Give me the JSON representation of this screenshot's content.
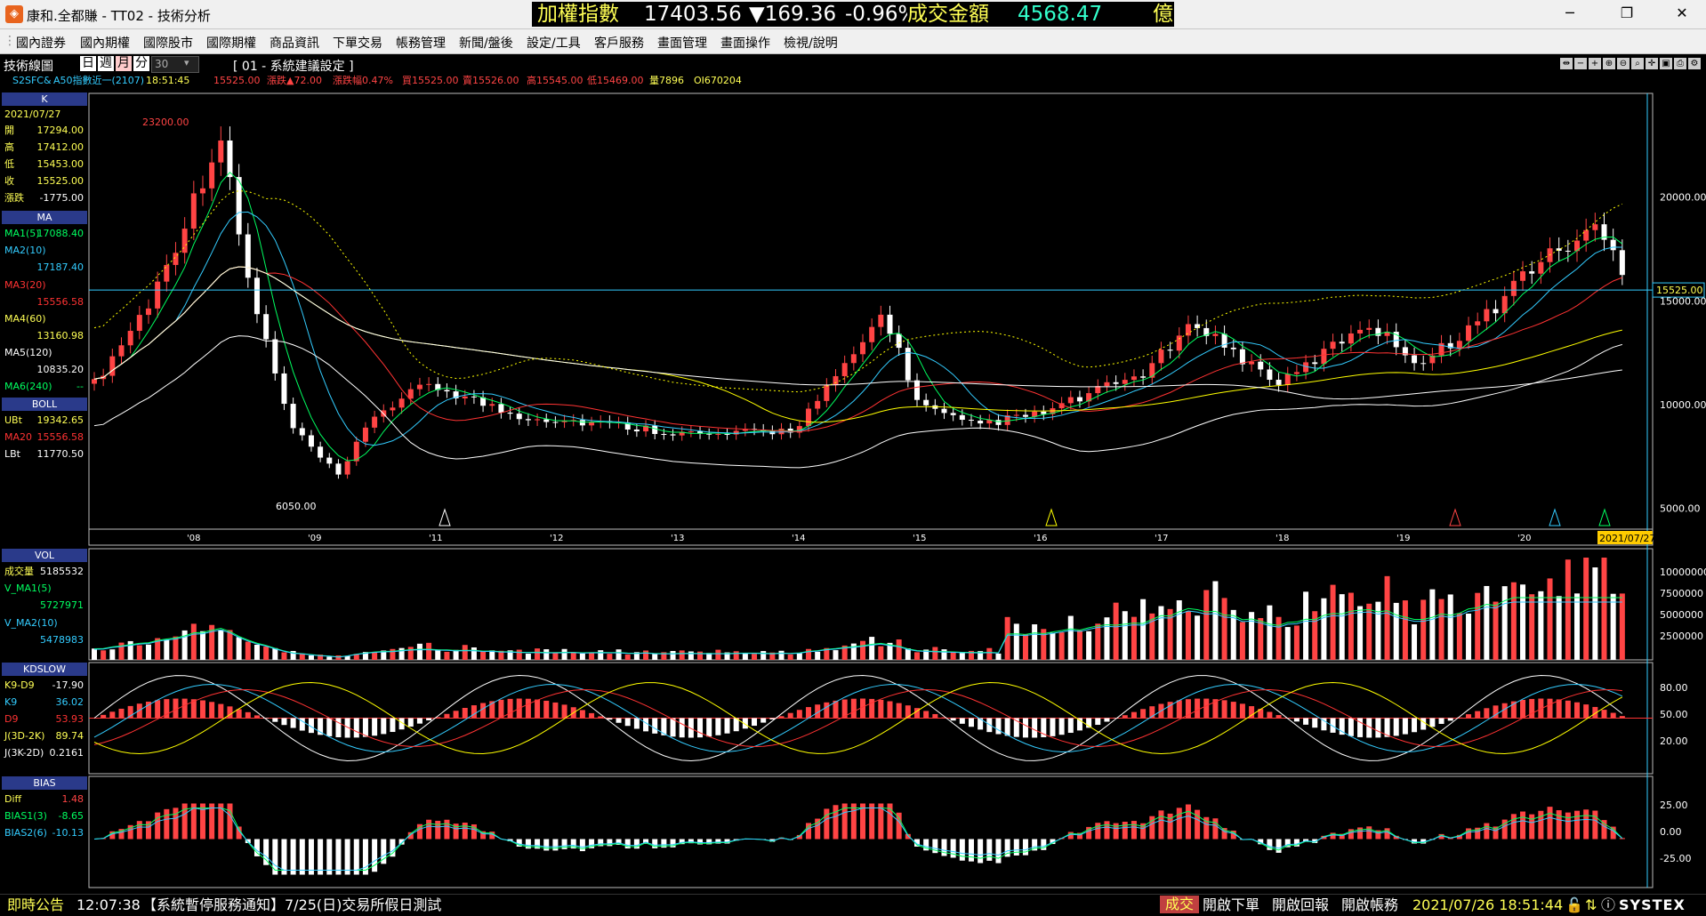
{
  "window": {
    "title": "康和.全都賺 - TT02 - 技術分析",
    "app_icon": "app-logo-icon"
  },
  "ticker": {
    "index_label": "加權指數",
    "index_value": "17403.56",
    "change": "▼169.36",
    "change_pct": "-0.96%",
    "volume_label": "成交金額",
    "volume_value": "4568.47",
    "volume_unit": "億"
  },
  "window_buttons": {
    "minimize": "─",
    "restore": "❐",
    "close": "✕"
  },
  "menu": [
    "國內證券",
    "國內期權",
    "國際股市",
    "國際期權",
    "商品資訊",
    "下單交易",
    "帳務管理",
    "新聞/盤後",
    "設定/工具",
    "客戶服務",
    "畫面管理",
    "畫面操作",
    "檢視/說明"
  ],
  "toolbar": {
    "panel_title": "技術線圖",
    "periods": [
      "日",
      "週",
      "月",
      "分"
    ],
    "selected_period": "月",
    "minutes_value": "30",
    "suggest_setting": "[ 01 - 系統建議設定 ]"
  },
  "quote": {
    "symbol": "S2SFC&",
    "name": "A50指數近一(2107)",
    "time": "18:51:45",
    "price": "15525.00",
    "change": "漲跌▲72.00",
    "change_pct": "漲跌幅0.47%",
    "bid": "買15525.00",
    "ask": "賣15526.00",
    "high": "高15545.00",
    "low": "低15469.00",
    "qty": "量7896",
    "oi": "OI670204"
  },
  "k_panel": {
    "head": "K",
    "date": "2021/07/27",
    "rows": [
      {
        "label": "開",
        "value": "17294.00"
      },
      {
        "label": "高",
        "value": "17412.00"
      },
      {
        "label": "低",
        "value": "15453.00"
      },
      {
        "label": "收",
        "value": "15525.00"
      },
      {
        "label": "漲跌",
        "value": "-1775.00"
      }
    ]
  },
  "ma_panel": {
    "head": "MA",
    "rows": [
      {
        "label": "MA1(5)",
        "value": "17088.40",
        "color": "#00ff60"
      },
      {
        "label": "MA2(10)",
        "value": "17187.40",
        "color": "#33ccff"
      },
      {
        "label": "MA3(20)",
        "value": "15556.58",
        "color": "#ff3333"
      },
      {
        "label": "MA4(60)",
        "value": "13160.98",
        "color": "#ffff00"
      },
      {
        "label": "MA5(120)",
        "value": "10835.20",
        "color": "#ffffff"
      },
      {
        "label": "MA6(240)",
        "value": "--",
        "color": "#00ff60"
      }
    ]
  },
  "boll_panel": {
    "head": "BOLL",
    "rows": [
      {
        "label": "UBt",
        "value": "19342.65",
        "color": "#ffff00"
      },
      {
        "label": "MA20",
        "value": "15556.58",
        "color": "#ff3333"
      },
      {
        "label": "LBt",
        "value": "11770.50",
        "color": "#ffffff"
      }
    ]
  },
  "vol_panel": {
    "head": "VOL",
    "rows": [
      {
        "label": "成交量",
        "value": "5185532",
        "color": "#ffffff"
      },
      {
        "label": "V_MA1(5)",
        "value": "5727971",
        "color": "#00ff60"
      },
      {
        "label": "V_MA2(10)",
        "value": "5478983",
        "color": "#33ccff"
      }
    ]
  },
  "kd_panel": {
    "head": "KDSLOW",
    "rows": [
      {
        "label": "K9-D9",
        "value": "-17.90",
        "color": "#ffffff"
      },
      {
        "label": "K9",
        "value": "36.02",
        "color": "#33ccff"
      },
      {
        "label": "D9",
        "value": "53.93",
        "color": "#ff3333"
      },
      {
        "label": "J(3D-2K)",
        "value": "89.74",
        "color": "#ffff00"
      },
      {
        "label": "J(3K-2D)",
        "value": "0.2161",
        "color": "#ffffff"
      }
    ]
  },
  "bias_panel": {
    "head": "BIAS",
    "rows": [
      {
        "label": "Diff",
        "value": "1.48",
        "color": "#ffff00"
      },
      {
        "label": "BIAS1(3)",
        "value": "-8.65",
        "color": "#00ff60"
      },
      {
        "label": "BIAS2(6)",
        "value": "-10.13",
        "color": "#33ccff"
      }
    ]
  },
  "chart_data": {
    "type": "candlestick",
    "x_labels": [
      "'08",
      "'09",
      "'11",
      "'12",
      "'13",
      "'14",
      "'15",
      "'16",
      "'17",
      "'18",
      "'19",
      "'20",
      "'21"
    ],
    "cursor_date": "2021/07/27",
    "price_ticks": [
      "20000.00",
      "15000.00",
      "10000.00",
      "5000.00"
    ],
    "last_price_tag": "15525.00",
    "high_annotation": "23200.00",
    "low_annotation": "6050.00",
    "vol_ticks": [
      "10000000",
      "7500000",
      "5000000",
      "2500000"
    ],
    "kd_ticks": [
      "80.00",
      "50.00",
      "20.00"
    ],
    "bias_ticks": [
      "25.00",
      "0.00",
      "-25.00"
    ],
    "ylim_price": [
      4000,
      25000
    ],
    "colors": {
      "up": "#ff4444",
      "down": "#ffffff",
      "ma5": "#00ff60",
      "ma10": "#33ccff",
      "ma20": "#ff3333",
      "ma60": "#ffff00",
      "ma120": "#ffffff",
      "boll": "#ffff00"
    }
  },
  "status": {
    "label": "即時公告",
    "time": "12:07:38",
    "notice": "【系統暫停服務通知】7/25(日)交易所假日測試",
    "deal_btn": "成交",
    "open_order": "開啟下單",
    "open_report": "開啟回報",
    "open_account": "開啟帳務",
    "datetime": "2021/07/26 18:51:44",
    "brand": "SYSTEX"
  }
}
